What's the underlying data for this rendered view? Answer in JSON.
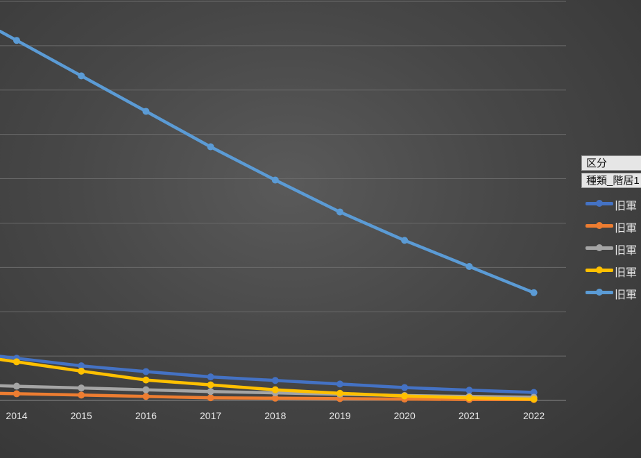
{
  "chart_data": {
    "type": "line",
    "x": [
      2014,
      2015,
      2016,
      2017,
      2018,
      2019,
      2020,
      2021,
      2022
    ],
    "xlabels": [
      "2014",
      "2015",
      "2016",
      "2017",
      "2018",
      "2019",
      "2020",
      "2021",
      "2022"
    ],
    "ylim": [
      0,
      9
    ],
    "grid": true,
    "series": [
      {
        "name": "旧軍",
        "color": "#4472c4",
        "values": [
          0.95,
          0.78,
          0.65,
          0.53,
          0.45,
          0.37,
          0.29,
          0.23,
          0.18
        ]
      },
      {
        "name": "旧軍",
        "color": "#ed7d31",
        "values": [
          0.15,
          0.12,
          0.09,
          0.06,
          0.05,
          0.04,
          0.03,
          0.02,
          0.02
        ]
      },
      {
        "name": "旧軍",
        "color": "#a5a5a5",
        "values": [
          0.32,
          0.28,
          0.24,
          0.2,
          0.17,
          0.14,
          0.11,
          0.09,
          0.07
        ]
      },
      {
        "name": "旧軍",
        "color": "#ffc000",
        "values": [
          0.87,
          0.66,
          0.46,
          0.35,
          0.24,
          0.16,
          0.1,
          0.06,
          0.03
        ]
      },
      {
        "name": "旧軍",
        "color": "#5b9bd5",
        "values": [
          8.12,
          7.32,
          6.52,
          5.72,
          4.97,
          4.25,
          3.61,
          3.02,
          2.43
        ]
      }
    ]
  },
  "legend": {
    "header1": "区分",
    "header2": "種類_階居1",
    "items": [
      {
        "label": "旧軍",
        "color": "#4472c4"
      },
      {
        "label": "旧軍",
        "color": "#ed7d31"
      },
      {
        "label": "旧軍",
        "color": "#a5a5a5"
      },
      {
        "label": "旧軍",
        "color": "#ffc000"
      },
      {
        "label": "旧軍",
        "color": "#5b9bd5"
      }
    ]
  }
}
